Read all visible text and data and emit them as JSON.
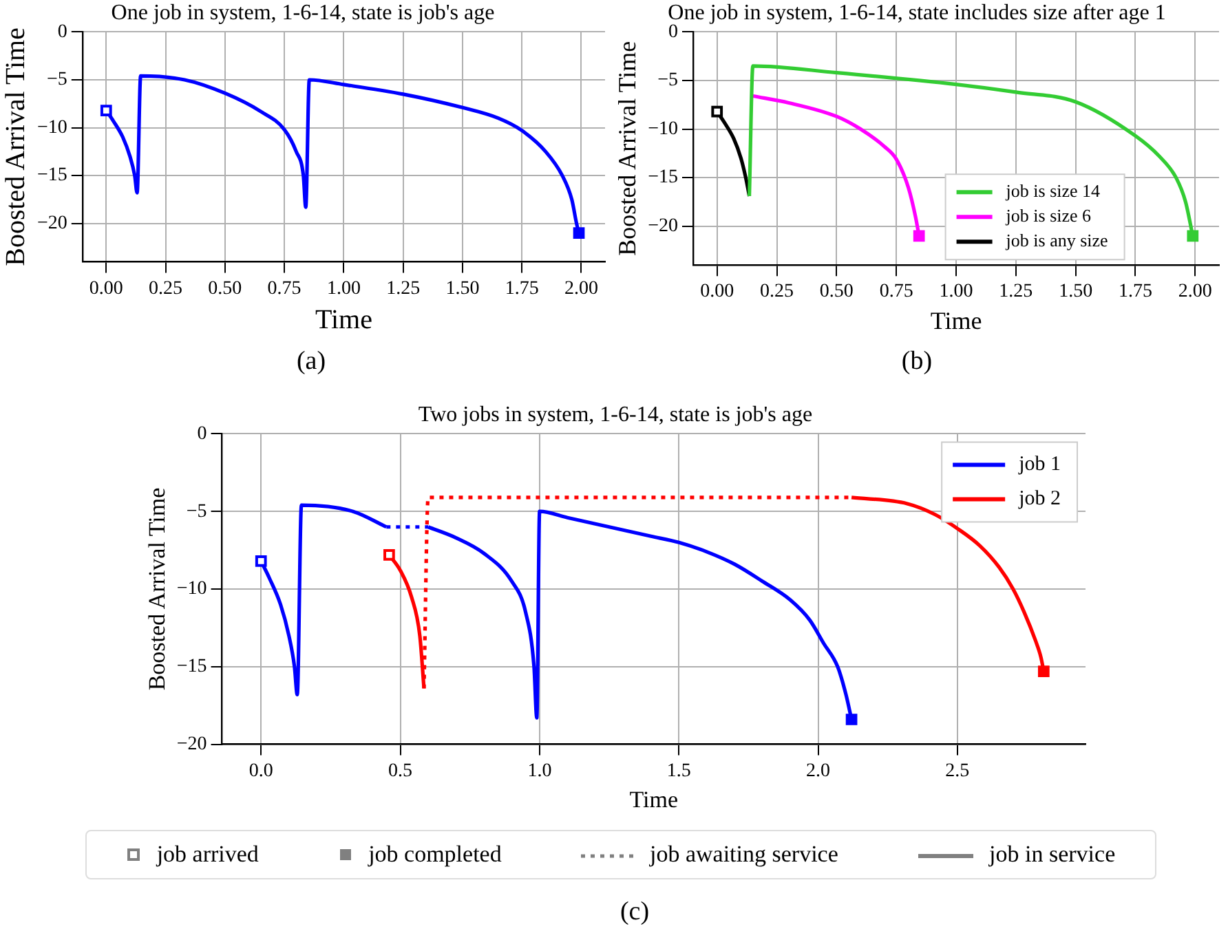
{
  "chart_data": [
    {
      "type": "line",
      "title": "One job in system, 1-6-14, state is job's age",
      "xlabel": "Time",
      "ylabel": "Boosted Arrival Time",
      "xlim": [
        -0.1,
        2.1
      ],
      "ylim": [
        -24,
        0
      ],
      "xticks": [
        {
          "value": 0,
          "label": "0.00"
        },
        {
          "value": 0.25,
          "label": "0.25"
        },
        {
          "value": 0.5,
          "label": "0.50"
        },
        {
          "value": 0.75,
          "label": "0.75"
        },
        {
          "value": 1,
          "label": "1.00"
        },
        {
          "value": 1.25,
          "label": "1.25"
        },
        {
          "value": 1.5,
          "label": "1.50"
        },
        {
          "value": 1.75,
          "label": "1.75"
        },
        {
          "value": 2,
          "label": "2.00"
        }
      ],
      "yticks": [
        {
          "value": -20,
          "label": "−20"
        },
        {
          "value": -15,
          "label": "−15"
        },
        {
          "value": -10,
          "label": "−10"
        },
        {
          "value": -5,
          "label": "−5"
        },
        {
          "value": 0,
          "label": "0"
        }
      ],
      "grid": true,
      "legend": false,
      "annotations": [
        "(a)"
      ],
      "series": [
        {
          "color": "#0000ff",
          "line_style": "solid",
          "x": [
            0,
            0.03,
            0.07,
            0.1,
            0.12,
            0.13,
            0.145,
            0.33,
            0.5,
            0.65,
            0.75,
            0.8,
            0.83,
            0.84,
            0.855,
            1.0,
            1.25,
            1.5,
            1.65,
            1.75,
            1.85,
            1.92,
            1.96,
            1.98,
            1.99
          ],
          "values": [
            -8.2,
            -9.3,
            -11,
            -13,
            -15,
            -16.8,
            -4.6,
            -5.0,
            -6.4,
            -8.3,
            -10.2,
            -12.5,
            -15,
            -18.3,
            -5.0,
            -5.5,
            -6.5,
            -7.9,
            -9.0,
            -10.3,
            -12.5,
            -15,
            -17.5,
            -20,
            -21
          ]
        },
        {
          "type": "scatter",
          "marker": "square",
          "color": "#ffffff",
          "colors": [
            "#0000ff"
          ],
          "x": [
            0
          ],
          "values": [
            -8.2
          ]
        },
        {
          "type": "scatter",
          "marker": "square",
          "colors": [
            "#0000ff"
          ],
          "x": [
            1.99
          ],
          "values": [
            -21
          ]
        }
      ]
    },
    {
      "type": "line",
      "title": "One job in system, 1-6-14, state includes size after age 1",
      "xlabel": "Time",
      "ylabel": "Boosted Arrival Time",
      "xlim": [
        -0.1,
        2.1
      ],
      "ylim": [
        -24,
        0
      ],
      "xticks": [
        {
          "value": 0,
          "label": "0.00"
        },
        {
          "value": 0.25,
          "label": "0.25"
        },
        {
          "value": 0.5,
          "label": "0.50"
        },
        {
          "value": 0.75,
          "label": "0.75"
        },
        {
          "value": 1,
          "label": "1.00"
        },
        {
          "value": 1.25,
          "label": "1.25"
        },
        {
          "value": 1.5,
          "label": "1.50"
        },
        {
          "value": 1.75,
          "label": "1.75"
        },
        {
          "value": 2,
          "label": "2.00"
        }
      ],
      "yticks": [
        {
          "value": -20,
          "label": "−20"
        },
        {
          "value": -15,
          "label": "−15"
        },
        {
          "value": -10,
          "label": "−10"
        },
        {
          "value": -5,
          "label": "−5"
        },
        {
          "value": 0,
          "label": "0"
        }
      ],
      "grid": true,
      "legend": "bottom",
      "annotations": [
        "(b)"
      ],
      "series": [
        {
          "name": "job is size 14",
          "color": "#33cc33",
          "line_style": "solid",
          "x": [
            0.135,
            0.15,
            0.5,
            1.0,
            1.25,
            1.5,
            1.75,
            1.85,
            1.92,
            1.96,
            1.99
          ],
          "values": [
            -16.9,
            -3.5,
            -4.2,
            -5.4,
            -6.2,
            -7.2,
            -10.7,
            -12.8,
            -15,
            -17.5,
            -21
          ]
        },
        {
          "name": "job is size 6",
          "color": "#ff00ff",
          "line_style": "solid",
          "x": [
            0.15,
            0.3,
            0.5,
            0.6,
            0.7,
            0.75,
            0.8,
            0.83,
            0.845
          ],
          "values": [
            -6.6,
            -7.3,
            -8.7,
            -10,
            -11.8,
            -13.1,
            -16,
            -19,
            -21
          ]
        },
        {
          "name": "job is any size",
          "color": "#000000",
          "line_style": "solid",
          "x": [
            0,
            0.03,
            0.07,
            0.1,
            0.12,
            0.135
          ],
          "values": [
            -8.2,
            -9.3,
            -11,
            -13,
            -15,
            -16.9
          ]
        },
        {
          "type": "scatter",
          "marker": "square",
          "color": "#ffffff",
          "colors": [
            "#000000"
          ],
          "x": [
            0
          ],
          "values": [
            -8.2
          ]
        },
        {
          "type": "scatter",
          "marker": "square",
          "colors": [
            "#ff00ff",
            "#33cc33"
          ],
          "x": [
            0.845,
            1.99
          ],
          "values": [
            -21,
            -21
          ]
        }
      ]
    },
    {
      "type": "line",
      "title": "Two jobs in system, 1-6-14, state is job's age",
      "xlabel": "Time",
      "ylabel": "Boosted Arrival Time",
      "xlim": [
        -0.14,
        2.96
      ],
      "ylim": [
        -20,
        0
      ],
      "xticks": [
        {
          "value": 0,
          "label": "0.0"
        },
        {
          "value": 0.5,
          "label": "0.5"
        },
        {
          "value": 1,
          "label": "1.0"
        },
        {
          "value": 1.5,
          "label": "1.5"
        },
        {
          "value": 2,
          "label": "2.0"
        },
        {
          "value": 2.5,
          "label": "2.5"
        }
      ],
      "yticks": [
        {
          "value": -20,
          "label": "−20"
        },
        {
          "value": -15,
          "label": "−15"
        },
        {
          "value": -10,
          "label": "−10"
        },
        {
          "value": -5,
          "label": "−5"
        },
        {
          "value": 0,
          "label": "0"
        }
      ],
      "grid": true,
      "legend": "top right",
      "annotations": [
        "job arrived",
        "job completed",
        "job awaiting service",
        "job in service",
        "(c)"
      ],
      "series": [
        {
          "name": "job 1",
          "color": "#0000ff",
          "line_style": "solid",
          "x": [
            0,
            0.03,
            0.07,
            0.1,
            0.12,
            0.13,
            0.145,
            0.33,
            0.45
          ],
          "values": [
            -8.2,
            -9.3,
            -11,
            -13,
            -15,
            -16.8,
            -4.6,
            -5.0,
            -6.0
          ]
        },
        {
          "color": "#0000ff",
          "line_style": "dotted",
          "x": [
            0.45,
            0.6
          ],
          "values": [
            -6.0,
            -6.0
          ]
        },
        {
          "color": "#0000ff",
          "line_style": "solid",
          "x": [
            0.6,
            0.7,
            0.8,
            0.9,
            0.95,
            0.98,
            0.99,
            1.0,
            1.1,
            1.25,
            1.4,
            1.5,
            1.6,
            1.7,
            1.8,
            1.9,
            1.97,
            2.02,
            2.07,
            2.1,
            2.12
          ],
          "values": [
            -6.0,
            -6.7,
            -7.7,
            -9.5,
            -11.5,
            -15,
            -18.3,
            -5.0,
            -5.4,
            -6.0,
            -6.6,
            -7.0,
            -7.6,
            -8.4,
            -9.5,
            -10.7,
            -12,
            -13.5,
            -15,
            -16.8,
            -18.4
          ]
        },
        {
          "name": "job 2",
          "color": "#ff0000",
          "line_style": "solid",
          "x": [
            0.46,
            0.5,
            0.54,
            0.57,
            0.585
          ],
          "values": [
            -7.8,
            -8.8,
            -10.5,
            -13,
            -16.4
          ]
        },
        {
          "color": "#ff0000",
          "line_style": "dotted",
          "x": [
            0.585,
            0.6,
            2.12
          ],
          "values": [
            -16.4,
            -4.1,
            -4.1
          ]
        },
        {
          "color": "#ff0000",
          "line_style": "solid",
          "x": [
            2.12,
            2.32,
            2.42,
            2.5,
            2.58,
            2.65,
            2.7,
            2.74,
            2.78,
            2.8,
            2.81
          ],
          "values": [
            -4.1,
            -4.5,
            -5.2,
            -6.1,
            -7.2,
            -8.6,
            -10,
            -11.5,
            -13.3,
            -14.4,
            -15.3
          ]
        },
        {
          "type": "scatter",
          "marker": "square",
          "color": "#ffffff",
          "colors": [
            "#0000ff",
            "#ff0000"
          ],
          "x": [
            0,
            0.46
          ],
          "values": [
            -8.2,
            -7.8
          ]
        },
        {
          "type": "scatter",
          "marker": "square",
          "colors": [
            "#0000ff",
            "#ff0000"
          ],
          "x": [
            2.12,
            2.81
          ],
          "values": [
            -18.4,
            -15.3
          ]
        }
      ]
    }
  ]
}
